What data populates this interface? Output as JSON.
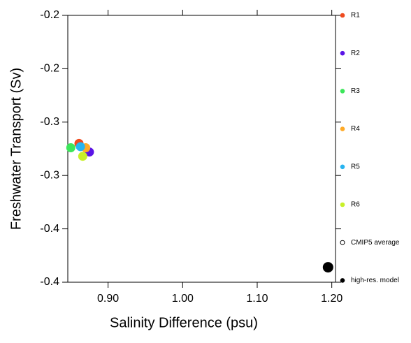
{
  "chart_data": {
    "type": "scatter",
    "xlabel": "Salinity Difference (psu)",
    "ylabel": "Freshwater Transport (Sv)",
    "xlim": [
      0.846,
      1.205
    ],
    "ylim": [
      -0.45,
      -0.2
    ],
    "xticks": [
      {
        "value": 0.9,
        "label": "0.90"
      },
      {
        "value": 1.0,
        "label": "1.00"
      },
      {
        "value": 1.1,
        "label": "1.10"
      },
      {
        "value": 1.2,
        "label": "1.20"
      }
    ],
    "yticks": [
      {
        "value": -0.2,
        "label": "-0.2"
      },
      {
        "value": -0.25,
        "label": "-0.2"
      },
      -0.3,
      {
        "value": -0.35,
        "label": "-0.3"
      },
      -0.4,
      {
        "value": -0.45,
        "label": "-0.4"
      }
    ],
    "series": [
      {
        "name": "R1",
        "color": "#f04b1e",
        "x": [
          0.861
        ],
        "y": [
          -0.32
        ]
      },
      {
        "name": "R2",
        "color": "#5a14e6",
        "x": [
          0.875
        ],
        "y": [
          -0.328
        ]
      },
      {
        "name": "R3",
        "color": "#3ce65a",
        "x": [
          0.85
        ],
        "y": [
          -0.324
        ]
      },
      {
        "name": "R4",
        "color": "#ffaa28",
        "x": [
          0.87
        ],
        "y": [
          -0.324
        ]
      },
      {
        "name": "R5",
        "color": "#28b4f0",
        "x": [
          0.863
        ],
        "y": [
          -0.323
        ]
      },
      {
        "name": "R6",
        "color": "#c8f028",
        "x": [
          0.866
        ],
        "y": [
          -0.332
        ]
      },
      {
        "name": "CMIP5 average",
        "color": "#000000",
        "marker": "open",
        "x": [],
        "y": []
      },
      {
        "name": "high-res. model",
        "color": "#000000",
        "marker_size": "large",
        "x": [
          1.195
        ],
        "y": [
          -0.436
        ]
      }
    ]
  }
}
